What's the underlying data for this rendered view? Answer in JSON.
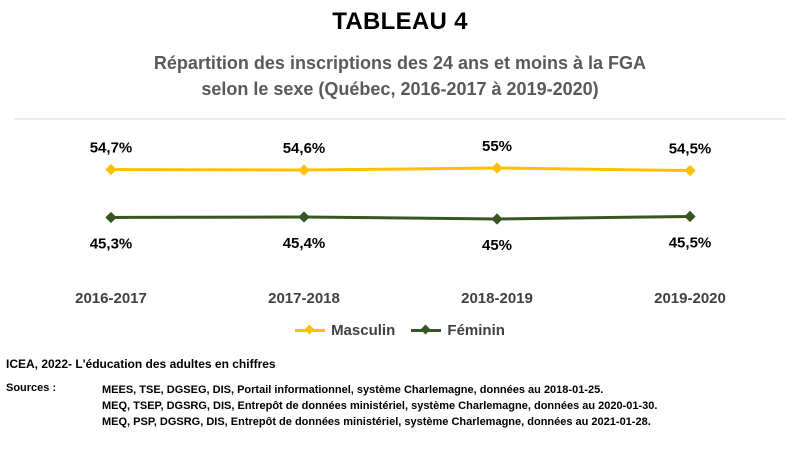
{
  "header": {
    "title": "TABLEAU 4",
    "subtitle_line1": "Répartition des inscriptions des 24 ans et moins à la FGA",
    "subtitle_line2": "selon le sexe (Québec, 2016-2017 à 2019-2020)"
  },
  "chart_data": {
    "type": "line",
    "title": "Répartition des inscriptions des 24 ans et moins à la FGA selon le sexe (Québec, 2016-2017 à 2019-2020)",
    "categories": [
      "2016-2017",
      "2017-2018",
      "2018-2019",
      "2019-2020"
    ],
    "series": [
      {
        "name": "Masculin",
        "values": [
          54.7,
          54.6,
          55,
          54.5
        ],
        "labels": [
          "54,7%",
          "54,6%",
          "55%",
          "54,5%"
        ],
        "color": "#ffc000",
        "label_position": "above"
      },
      {
        "name": "Féminin",
        "values": [
          45.3,
          45.4,
          45,
          45.5
        ],
        "labels": [
          "45,3%",
          "45,4%",
          "45%",
          "45,5%"
        ],
        "color": "#375623",
        "label_position": "below"
      }
    ],
    "xlabel": "",
    "ylabel": "",
    "ylim": [
      40,
      60
    ],
    "grid": false,
    "legend": "bottom"
  },
  "legend": {
    "masculin": "Masculin",
    "feminin": "Féminin"
  },
  "footer": {
    "source_title": "ICEA, 2022- L'éducation des adultes en chiffres",
    "sources_label": "Sources :",
    "sources": [
      "MEES, TSE, DGSEG, DIS, Portail informationnel, système Charlemagne, données au 2018-01-25.",
      "MEQ, TSEP, DGSRG, DIS, Entrepôt de données ministériel, système Charlemagne, données au 2020-01-30.",
      "MEQ, PSP, DGSRG, DIS, Entrepôt de données ministériel, système Charlemagne, données au 2021-01-28."
    ]
  },
  "colors": {
    "masculin": "#ffc000",
    "feminin": "#375623",
    "axis": "#d9d9d9",
    "subtitle": "#595959"
  }
}
